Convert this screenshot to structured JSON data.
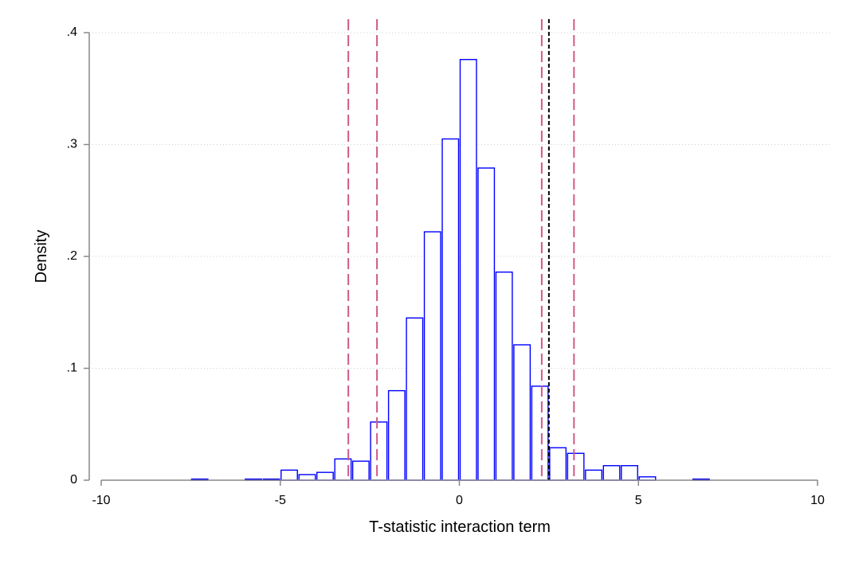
{
  "chart_data": {
    "type": "bar",
    "title": "",
    "xlabel": "T-statistic interaction term",
    "ylabel": "Density",
    "xlim": [
      -10,
      10
    ],
    "ylim": [
      0,
      0.4
    ],
    "x_ticks": [
      -10,
      -5,
      0,
      5,
      10
    ],
    "x_tick_labels": [
      "-10",
      "-5",
      "0",
      "5",
      "10"
    ],
    "y_ticks": [
      0,
      0.1,
      0.2,
      0.3,
      0.4
    ],
    "y_tick_labels": [
      "0",
      ".1",
      ".2",
      ".3",
      ".4"
    ],
    "grid": true,
    "bin_width": 0.5,
    "bins": [
      {
        "x0": -7.5,
        "density": 0.001
      },
      {
        "x0": -6.0,
        "density": 0.001
      },
      {
        "x0": -5.5,
        "density": 0.001
      },
      {
        "x0": -5.0,
        "density": 0.009
      },
      {
        "x0": -4.5,
        "density": 0.005
      },
      {
        "x0": -4.0,
        "density": 0.007
      },
      {
        "x0": -3.5,
        "density": 0.019
      },
      {
        "x0": -3.0,
        "density": 0.017
      },
      {
        "x0": -2.5,
        "density": 0.052
      },
      {
        "x0": -2.0,
        "density": 0.08
      },
      {
        "x0": -1.5,
        "density": 0.145
      },
      {
        "x0": -1.0,
        "density": 0.222
      },
      {
        "x0": -0.5,
        "density": 0.305
      },
      {
        "x0": 0.0,
        "density": 0.376
      },
      {
        "x0": 0.5,
        "density": 0.279
      },
      {
        "x0": 1.0,
        "density": 0.186
      },
      {
        "x0": 1.5,
        "density": 0.121
      },
      {
        "x0": 2.0,
        "density": 0.084
      },
      {
        "x0": 2.5,
        "density": 0.029
      },
      {
        "x0": 3.0,
        "density": 0.024
      },
      {
        "x0": 3.5,
        "density": 0.009
      },
      {
        "x0": 4.0,
        "density": 0.013
      },
      {
        "x0": 4.5,
        "density": 0.013
      },
      {
        "x0": 5.0,
        "density": 0.003
      },
      {
        "x0": 6.5,
        "density": 0.001
      }
    ],
    "reference_lines": [
      {
        "x": -3.1,
        "color": "#d05a8a",
        "style": "long-dash"
      },
      {
        "x": -2.3,
        "color": "#d05a8a",
        "style": "long-dash"
      },
      {
        "x": 2.3,
        "color": "#d05a8a",
        "style": "long-dash"
      },
      {
        "x": 3.2,
        "color": "#d05a8a",
        "style": "long-dash"
      },
      {
        "x": 2.5,
        "color": "#000000",
        "style": "short-dash"
      }
    ],
    "colors": {
      "bar_stroke": "#0000ff",
      "bar_fill": "#ffffff",
      "grid": "#cfcfcf",
      "axis": "#888888"
    }
  }
}
